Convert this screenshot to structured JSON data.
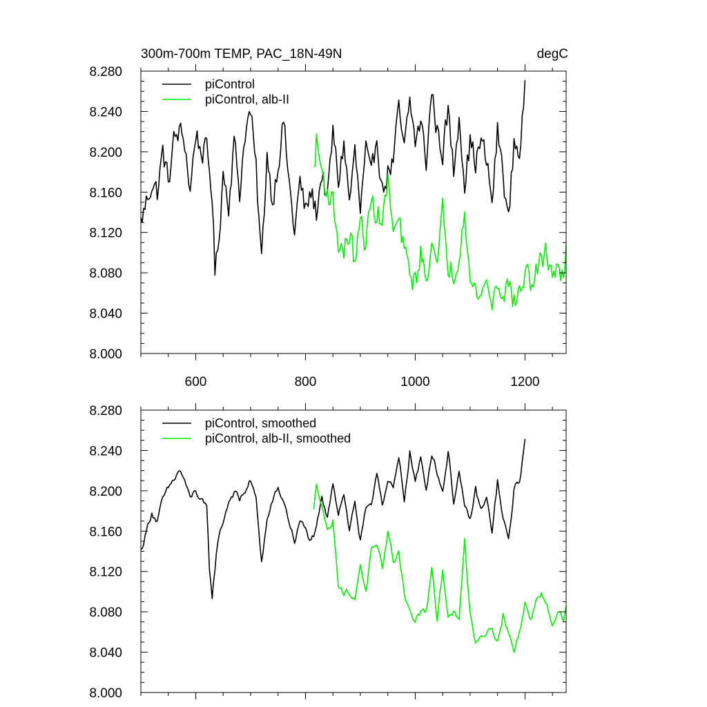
{
  "header": {
    "title": "300m-700m TEMP, PAC_18N-49N",
    "units": "degC"
  },
  "chart_data": [
    {
      "type": "line",
      "title": "300m-700m TEMP, PAC_18N-49N",
      "units": "degC",
      "xlim": [
        500,
        1275
      ],
      "ylim": [
        8.0,
        8.28
      ],
      "xticks": [
        600,
        800,
        1000,
        1200
      ],
      "xtick_labels": [
        "600",
        "800",
        "1000",
        "1200"
      ],
      "yticks": [
        8.0,
        8.04,
        8.08,
        8.12,
        8.16,
        8.2,
        8.24,
        8.28
      ],
      "ytick_labels": [
        "8.000",
        "8.040",
        "8.080",
        "8.120",
        "8.160",
        "8.200",
        "8.240",
        "8.280"
      ],
      "grid": false,
      "legend_position": "top-left",
      "series": [
        {
          "name": "piControl",
          "color": "#000000",
          "x": [
            500,
            510,
            520,
            530,
            540,
            550,
            560,
            570,
            580,
            590,
            600,
            610,
            620,
            630,
            635,
            640,
            650,
            660,
            670,
            680,
            690,
            700,
            710,
            720,
            730,
            740,
            750,
            760,
            770,
            780,
            790,
            800,
            810,
            820,
            830,
            840,
            850,
            860,
            870,
            880,
            890,
            900,
            910,
            920,
            930,
            940,
            950,
            960,
            970,
            980,
            990,
            1000,
            1010,
            1020,
            1030,
            1040,
            1050,
            1060,
            1070,
            1080,
            1090,
            1100,
            1110,
            1120,
            1130,
            1140,
            1150,
            1160,
            1170,
            1180,
            1190,
            1200
          ],
          "y": [
            8.13,
            8.15,
            8.17,
            8.16,
            8.2,
            8.17,
            8.21,
            8.22,
            8.21,
            8.16,
            8.22,
            8.2,
            8.2,
            8.16,
            8.08,
            8.1,
            8.18,
            8.15,
            8.21,
            8.16,
            8.22,
            8.24,
            8.18,
            8.09,
            8.2,
            8.15,
            8.19,
            8.23,
            8.17,
            8.12,
            8.17,
            8.14,
            8.16,
            8.14,
            8.18,
            8.15,
            8.22,
            8.17,
            8.21,
            8.15,
            8.2,
            8.14,
            8.2,
            8.17,
            8.22,
            8.16,
            8.18,
            8.19,
            8.24,
            8.2,
            8.25,
            8.21,
            8.23,
            8.19,
            8.26,
            8.22,
            8.2,
            8.24,
            8.18,
            8.24,
            8.17,
            8.21,
            8.19,
            8.21,
            8.19,
            8.15,
            8.22,
            8.18,
            8.13,
            8.21,
            8.2,
            8.26
          ]
        },
        {
          "name": "piControl, alb-II",
          "color": "#00ee00",
          "x": [
            815,
            820,
            830,
            840,
            850,
            860,
            870,
            880,
            890,
            900,
            910,
            920,
            930,
            940,
            950,
            960,
            970,
            980,
            990,
            1000,
            1010,
            1020,
            1030,
            1040,
            1050,
            1060,
            1070,
            1080,
            1090,
            1100,
            1110,
            1120,
            1130,
            1140,
            1150,
            1160,
            1170,
            1180,
            1190,
            1200,
            1210,
            1220,
            1230,
            1240,
            1250,
            1260,
            1270,
            1275
          ],
          "y": [
            8.18,
            8.21,
            8.18,
            8.16,
            8.15,
            8.11,
            8.1,
            8.12,
            8.09,
            8.13,
            8.11,
            8.15,
            8.14,
            8.13,
            8.17,
            8.12,
            8.13,
            8.1,
            8.08,
            8.07,
            8.1,
            8.07,
            8.12,
            8.08,
            8.14,
            8.09,
            8.08,
            8.1,
            8.15,
            8.07,
            8.06,
            8.06,
            8.07,
            8.05,
            8.07,
            8.06,
            8.07,
            8.05,
            8.06,
            8.08,
            8.07,
            8.08,
            8.09,
            8.1,
            8.08,
            8.09,
            8.07,
            8.1
          ]
        }
      ]
    },
    {
      "type": "line",
      "xlim": [
        500,
        1275
      ],
      "ylim": [
        8.0,
        8.28
      ],
      "xticks": [
        600,
        800,
        1000,
        1200
      ],
      "yticks": [
        8.0,
        8.04,
        8.08,
        8.12,
        8.16,
        8.2,
        8.24,
        8.28
      ],
      "ytick_labels": [
        "8.000",
        "8.040",
        "8.080",
        "8.120",
        "8.160",
        "8.200",
        "8.240",
        "8.280"
      ],
      "grid": false,
      "legend_position": "top-left",
      "series": [
        {
          "name": "piControl, smoothed",
          "color": "#000000",
          "x": [
            500,
            510,
            520,
            530,
            540,
            550,
            560,
            570,
            580,
            590,
            600,
            610,
            620,
            625,
            630,
            640,
            650,
            660,
            670,
            680,
            690,
            700,
            710,
            720,
            730,
            740,
            750,
            760,
            770,
            780,
            790,
            800,
            810,
            820,
            830,
            840,
            850,
            860,
            870,
            880,
            890,
            900,
            910,
            920,
            930,
            940,
            950,
            960,
            970,
            980,
            990,
            1000,
            1010,
            1020,
            1030,
            1040,
            1050,
            1060,
            1070,
            1080,
            1090,
            1100,
            1110,
            1120,
            1130,
            1140,
            1150,
            1160,
            1170,
            1180,
            1190,
            1200
          ],
          "y": [
            8.14,
            8.16,
            8.18,
            8.17,
            8.19,
            8.2,
            8.21,
            8.22,
            8.21,
            8.19,
            8.2,
            8.19,
            8.18,
            8.12,
            8.095,
            8.15,
            8.17,
            8.19,
            8.2,
            8.19,
            8.2,
            8.21,
            8.19,
            8.13,
            8.17,
            8.19,
            8.2,
            8.19,
            8.17,
            8.15,
            8.17,
            8.16,
            8.15,
            8.16,
            8.19,
            8.17,
            8.21,
            8.18,
            8.2,
            8.16,
            8.19,
            8.15,
            8.18,
            8.18,
            8.22,
            8.19,
            8.21,
            8.2,
            8.23,
            8.19,
            8.24,
            8.21,
            8.23,
            8.2,
            8.24,
            8.22,
            8.2,
            8.24,
            8.19,
            8.22,
            8.18,
            8.17,
            8.2,
            8.18,
            8.19,
            8.16,
            8.21,
            8.17,
            8.15,
            8.2,
            8.21,
            8.25
          ]
        },
        {
          "name": "piControl, alb-II, smoothed",
          "color": "#00ee00",
          "x": [
            815,
            820,
            830,
            840,
            850,
            860,
            870,
            880,
            890,
            900,
            910,
            920,
            930,
            940,
            950,
            960,
            970,
            980,
            990,
            1000,
            1010,
            1020,
            1030,
            1040,
            1050,
            1060,
            1070,
            1080,
            1090,
            1100,
            1110,
            1120,
            1130,
            1140,
            1150,
            1160,
            1170,
            1180,
            1190,
            1200,
            1210,
            1220,
            1230,
            1240,
            1250,
            1260,
            1270,
            1275
          ],
          "y": [
            8.18,
            8.205,
            8.19,
            8.16,
            8.17,
            8.11,
            8.1,
            8.1,
            8.09,
            8.13,
            8.1,
            8.14,
            8.14,
            8.12,
            8.16,
            8.13,
            8.14,
            8.1,
            8.08,
            8.07,
            8.08,
            8.08,
            8.12,
            8.07,
            8.12,
            8.08,
            8.08,
            8.07,
            8.15,
            8.08,
            8.05,
            8.06,
            8.06,
            8.07,
            8.05,
            8.08,
            8.06,
            8.04,
            8.06,
            8.09,
            8.07,
            8.09,
            8.1,
            8.09,
            8.07,
            8.08,
            8.07,
            8.09
          ]
        }
      ]
    }
  ]
}
